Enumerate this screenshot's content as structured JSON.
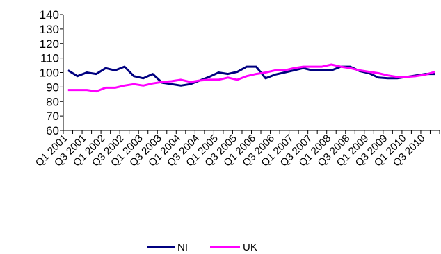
{
  "chart_data": {
    "type": "line",
    "title": "",
    "xlabel": "",
    "ylabel": "",
    "ylim": [
      60,
      140
    ],
    "yticks": [
      60,
      70,
      80,
      90,
      100,
      110,
      120,
      130,
      140
    ],
    "grid": false,
    "legend_position": "bottom",
    "x": [
      "Q1 2001",
      "Q2 2001",
      "Q3 2001",
      "Q4 2001",
      "Q1 2002",
      "Q2 2002",
      "Q3 2002",
      "Q4 2002",
      "Q1 2003",
      "Q2 2003",
      "Q3 2003",
      "Q4 2003",
      "Q1 2004",
      "Q2 2004",
      "Q3 2004",
      "Q4 2004",
      "Q1 2005",
      "Q2 2005",
      "Q3 2005",
      "Q4 2005",
      "Q1 2006",
      "Q2 2006",
      "Q3 2006",
      "Q4 2006",
      "Q1 2007",
      "Q2 2007",
      "Q3 2007",
      "Q4 2007",
      "Q1 2008",
      "Q2 2008",
      "Q3 2008",
      "Q4 2008",
      "Q1 2009",
      "Q2 2009",
      "Q3 2009",
      "Q4 2009",
      "Q1 2010",
      "Q2 2010",
      "Q3 2010",
      "Q4 2010"
    ],
    "x_tick_labels": [
      "Q1 2001",
      "Q3 2001",
      "Q1 2002",
      "Q3 2002",
      "Q1 2003",
      "Q3 2003",
      "Q1 2004",
      "Q3 2004",
      "Q1 2005",
      "Q3 2005",
      "Q1 2006",
      "Q3 2006",
      "Q1 2007",
      "Q3 2007",
      "Q1 2008",
      "Q3 2008",
      "Q1 2009",
      "Q3 2009",
      "Q1 2010",
      "Q3 2010"
    ],
    "series": [
      {
        "name": "NI",
        "color": "#000080",
        "values": [
          101.5,
          97.5,
          100,
          99,
          103,
          101.5,
          104,
          97.5,
          96,
          99,
          93,
          92,
          91,
          92,
          94.5,
          97,
          100,
          99,
          100.5,
          104,
          104,
          96,
          98.5,
          100,
          101.5,
          103,
          101.5,
          101.5,
          101.5,
          104,
          104,
          101,
          99.5,
          96.5,
          96,
          96,
          97,
          98,
          99,
          99
        ]
      },
      {
        "name": "UK",
        "color": "#FF00FF",
        "values": [
          88,
          88,
          88,
          87,
          89.5,
          89.5,
          91,
          92,
          91,
          92.5,
          93.5,
          94,
          95,
          93.5,
          94.5,
          95,
          95,
          96.5,
          95,
          97.5,
          99,
          100,
          101.5,
          101.5,
          103,
          104,
          104,
          104,
          105.5,
          104,
          103,
          101.5,
          100.5,
          99.5,
          98,
          97,
          97,
          97.5,
          98.5,
          100.5
        ]
      }
    ]
  }
}
